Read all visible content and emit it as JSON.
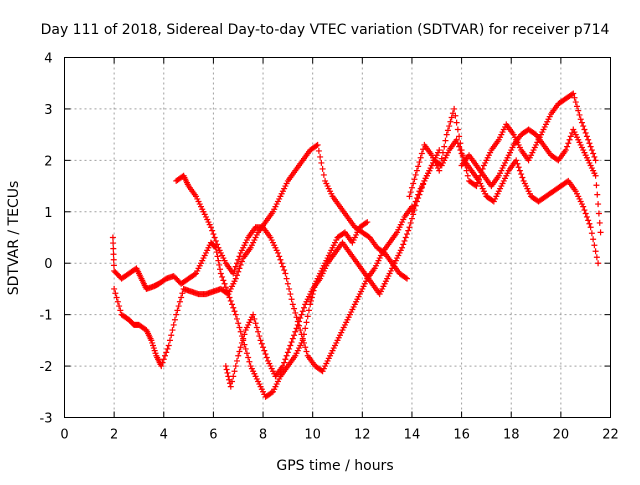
{
  "chart_data": {
    "type": "scatter",
    "title": "Day 111 of 2018, Sidereal Day-to-day VTEC variation (SDTVAR) for receiver p714",
    "xlabel": "GPS time / hours",
    "ylabel": "SDTVAR / TECUs",
    "xlim": [
      0,
      22
    ],
    "ylim": [
      -3,
      4
    ],
    "x_ticks": [
      "0",
      "2",
      "4",
      "6",
      "8",
      "10",
      "12",
      "14",
      "16",
      "18",
      "20",
      "22"
    ],
    "y_ticks": [
      "-3",
      "-2",
      "-1",
      "0",
      "1",
      "2",
      "3",
      "4"
    ],
    "grid": true,
    "marker": "+",
    "color": "#ff0000",
    "series": [
      {
        "x": [
          1.95,
          2.0,
          2.3,
          2.6,
          2.9,
          3.1,
          3.3,
          3.6,
          3.8,
          4.1,
          4.4,
          4.7,
          5.0,
          5.3,
          5.6,
          5.9,
          6.1,
          6.3,
          6.6,
          6.9,
          7.2,
          7.5,
          7.8,
          8.1,
          8.4,
          8.7,
          9.0,
          9.3,
          9.6,
          9.9,
          10.1,
          10.4,
          10.7,
          11.0,
          11.3,
          11.6,
          11.9,
          12.2
        ],
        "y": [
          0.5,
          -0.15,
          -0.3,
          -0.2,
          -0.1,
          -0.3,
          -0.5,
          -0.45,
          -0.4,
          -0.3,
          -0.25,
          -0.4,
          -0.3,
          -0.2,
          0.1,
          0.4,
          0.3,
          -0.2,
          -0.6,
          -1.0,
          -1.5,
          -2.0,
          -2.3,
          -2.6,
          -2.5,
          -2.2,
          -2.0,
          -1.8,
          -1.5,
          -0.8,
          -0.4,
          -0.1,
          0.2,
          0.5,
          0.6,
          0.4,
          0.7,
          0.8
        ]
      },
      {
        "x": [
          2.0,
          2.3,
          2.6,
          2.8,
          3.0,
          3.3,
          3.5,
          3.7,
          3.9,
          4.2,
          4.5,
          4.8,
          5.1,
          5.4,
          5.7,
          6.0,
          6.3,
          6.6,
          6.9,
          7.2,
          7.5,
          7.8,
          8.1,
          8.4,
          8.7,
          9.0,
          9.3,
          9.6,
          9.9,
          10.2,
          10.5,
          10.8,
          11.1,
          11.4,
          11.7,
          12.0,
          12.3,
          12.6,
          12.9,
          13.2,
          13.5,
          13.8
        ],
        "y": [
          -0.5,
          -1.0,
          -1.1,
          -1.2,
          -1.2,
          -1.3,
          -1.5,
          -1.8,
          -2.0,
          -1.6,
          -1.0,
          -0.5,
          -0.55,
          -0.6,
          -0.6,
          -0.55,
          -0.5,
          -0.6,
          -0.3,
          0.1,
          0.3,
          0.6,
          0.8,
          1.0,
          1.3,
          1.6,
          1.8,
          2.0,
          2.2,
          2.3,
          1.6,
          1.3,
          1.1,
          0.9,
          0.7,
          0.6,
          0.5,
          0.3,
          0.2,
          0.0,
          -0.2,
          -0.3
        ]
      },
      {
        "x": [
          4.5,
          4.8,
          5.0,
          5.3,
          5.6,
          5.9,
          6.2,
          6.5,
          6.8,
          7.1,
          7.4,
          7.7,
          8.0,
          8.3,
          8.6,
          8.9,
          9.2,
          9.5,
          9.8,
          10.1,
          10.4,
          10.7,
          11.0,
          11.3,
          11.6,
          11.9,
          12.2,
          12.5,
          12.8,
          13.1,
          13.4,
          13.7,
          14.0
        ],
        "y": [
          1.6,
          1.7,
          1.5,
          1.3,
          1.0,
          0.7,
          0.3,
          0.0,
          -0.2,
          0.2,
          0.5,
          0.7,
          0.7,
          0.5,
          0.2,
          -0.2,
          -0.8,
          -1.3,
          -1.8,
          -2.0,
          -2.1,
          -1.8,
          -1.5,
          -1.2,
          -0.9,
          -0.6,
          -0.3,
          -0.1,
          0.2,
          0.4,
          0.6,
          0.9,
          1.1
        ]
      },
      {
        "x": [
          6.5,
          6.7,
          7.0,
          7.3,
          7.6,
          7.9,
          8.2,
          8.5,
          8.8,
          9.1,
          9.4,
          9.7,
          10.0,
          10.3,
          10.6,
          10.9,
          11.2,
          11.5,
          11.8,
          12.1,
          12.4,
          12.7,
          13.0,
          13.3,
          13.6,
          13.9,
          14.2,
          14.5,
          14.8,
          15.1
        ],
        "y": [
          -2.0,
          -2.4,
          -1.8,
          -1.3,
          -1.0,
          -1.5,
          -1.9,
          -2.2,
          -2.0,
          -1.6,
          -1.2,
          -0.8,
          -0.5,
          -0.3,
          0.0,
          0.2,
          0.4,
          0.2,
          0.0,
          -0.2,
          -0.4,
          -0.6,
          -0.3,
          0.0,
          0.3,
          0.7,
          1.2,
          1.6,
          1.9,
          2.2
        ]
      },
      {
        "x": [
          13.9,
          14.2,
          14.5,
          14.8,
          15.1,
          15.4,
          15.7,
          16.0,
          16.3,
          16.6,
          16.9,
          17.2,
          17.5,
          17.8,
          18.1,
          18.4,
          18.7,
          19.0,
          19.3,
          19.6,
          19.9,
          20.2,
          20.5,
          20.8,
          21.1,
          21.4
        ],
        "y": [
          1.3,
          1.8,
          2.3,
          2.1,
          1.8,
          2.5,
          3.0,
          2.2,
          1.6,
          1.5,
          1.9,
          2.2,
          2.4,
          2.7,
          2.5,
          2.2,
          2.0,
          2.3,
          2.6,
          2.9,
          3.1,
          3.2,
          3.3,
          2.8,
          2.4,
          2.0
        ]
      },
      {
        "x": [
          14.0,
          14.3,
          14.6,
          14.9,
          15.2,
          15.5,
          15.8,
          16.1,
          16.4,
          16.7,
          17.0,
          17.3,
          17.6,
          17.9,
          18.2,
          18.5,
          18.8,
          19.1,
          19.4,
          19.7,
          20.0,
          20.3,
          20.6,
          20.9,
          21.2,
          21.5
        ],
        "y": [
          1.0,
          1.4,
          1.7,
          2.0,
          1.9,
          2.2,
          2.4,
          2.0,
          1.8,
          1.6,
          1.3,
          1.2,
          1.5,
          1.8,
          2.0,
          1.6,
          1.3,
          1.2,
          1.3,
          1.4,
          1.5,
          1.6,
          1.4,
          1.1,
          0.7,
          0.0
        ]
      },
      {
        "x": [
          16.0,
          16.3,
          16.6,
          16.9,
          17.2,
          17.5,
          17.8,
          18.1,
          18.4,
          18.7,
          19.0,
          19.3,
          19.6,
          19.9,
          20.2,
          20.5,
          20.8,
          21.1,
          21.4,
          21.6
        ],
        "y": [
          1.9,
          2.1,
          1.9,
          1.7,
          1.5,
          1.7,
          2.0,
          2.3,
          2.5,
          2.6,
          2.5,
          2.3,
          2.1,
          2.0,
          2.2,
          2.6,
          2.3,
          2.0,
          1.7,
          0.6
        ]
      }
    ]
  }
}
